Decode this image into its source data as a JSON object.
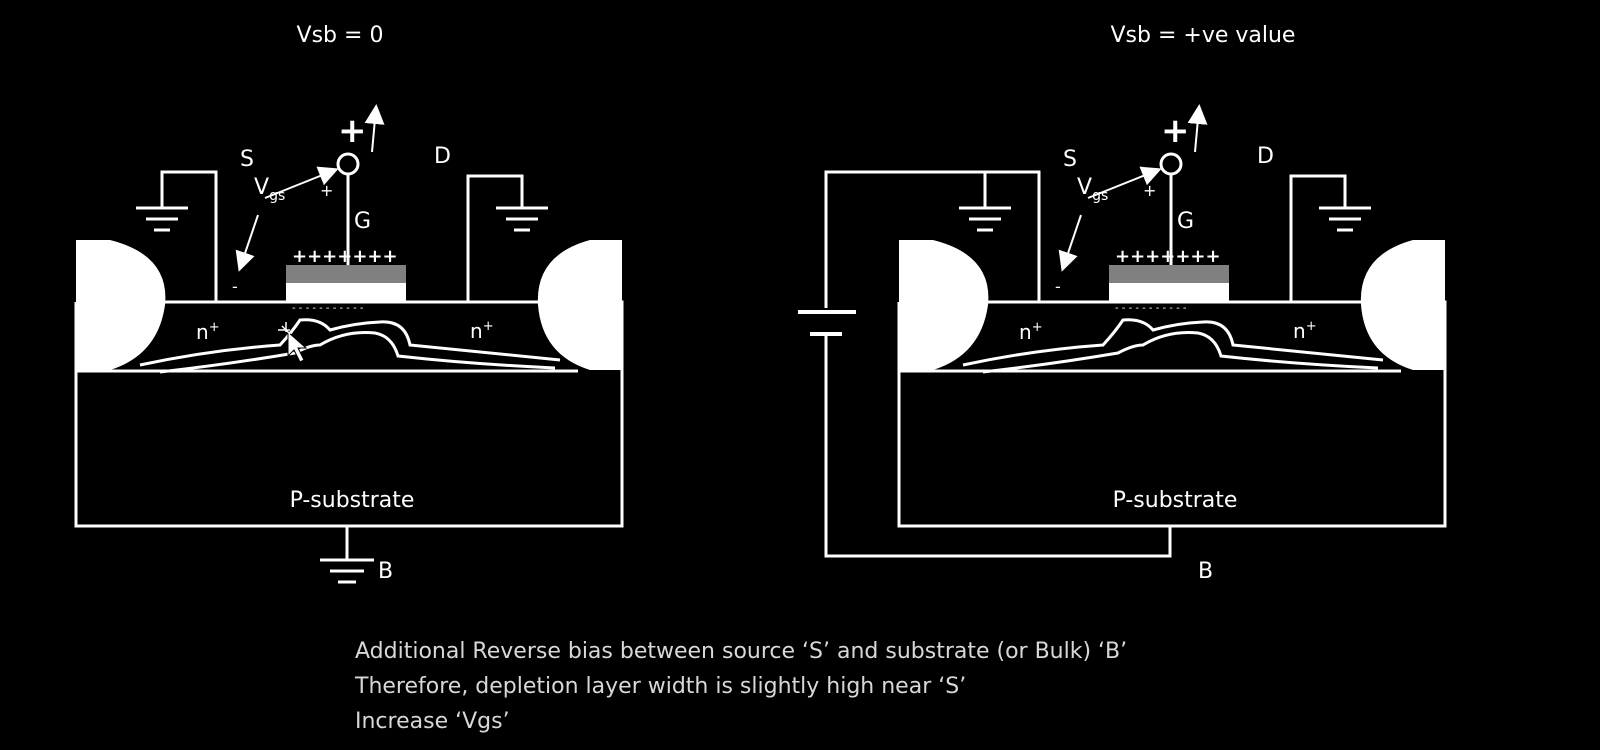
{
  "left_panel": {
    "title": "Vsb = 0",
    "source": "S",
    "drain": "D",
    "gate": "G",
    "bulk": "B",
    "vgs_main": "V",
    "vgs_sub": "gs",
    "plus_big": "+",
    "plus_small": "+",
    "minus": "-",
    "gate_charges": "+++++++",
    "channel_charges": "- - - - - - - - - - -",
    "n_left": "n",
    "n_right": "n",
    "n_sup": "+",
    "substrate": "P-substrate"
  },
  "right_panel": {
    "title": "Vsb = +ve value",
    "source": "S",
    "drain": "D",
    "gate": "G",
    "bulk": "B",
    "vgs_main": "V",
    "vgs_sub": "gs",
    "plus_big": "+",
    "plus_small": "+",
    "minus": "-",
    "gate_charges": "+++++++",
    "channel_charges": "- - - - - - - - - - -",
    "n_left": "n",
    "n_right": "n",
    "n_sup": "+",
    "substrate": "P-substrate"
  },
  "caption": {
    "line1": "Additional Reverse bias between source ‘S’ and substrate (or Bulk) ‘B’",
    "line2": "Therefore, depletion layer width is slightly high near ‘S’",
    "line3": "Increase ‘Vgs’"
  },
  "colors": {
    "background": "#000000",
    "line": "#ffffff",
    "gate_oxide": "#808080",
    "caption_text": "#d8d8d8"
  },
  "icons": [
    "ground-symbol-icon",
    "battery-icon",
    "up-arrow-icon",
    "mouse-cursor-icon"
  ]
}
